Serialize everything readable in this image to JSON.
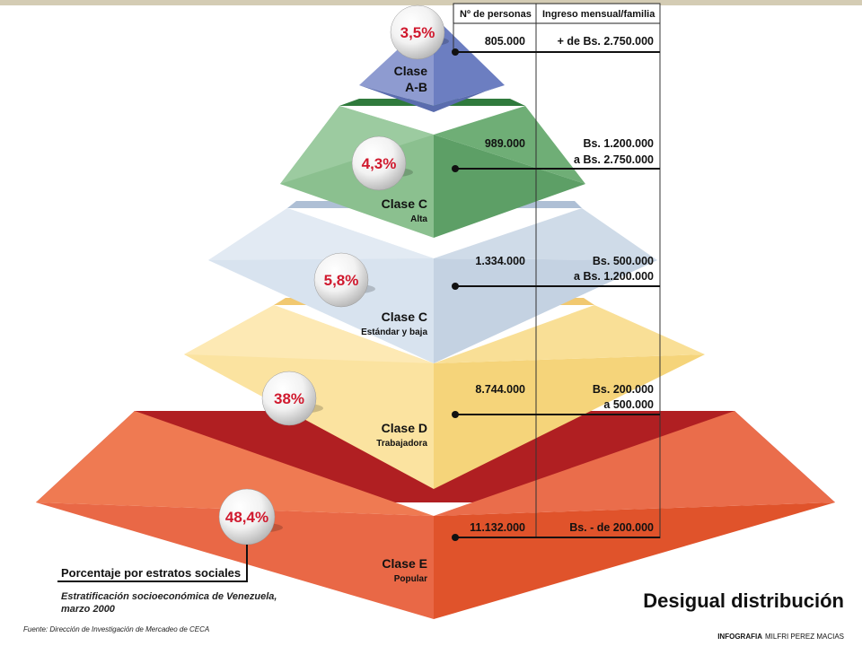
{
  "headline": "Desigual distribución",
  "table_headers": {
    "persons": "Nº de personas",
    "income": "Ingreso mensual/familia"
  },
  "classes": [
    {
      "percent": "3,5%",
      "name": "Clase",
      "name2": "A-B",
      "subtitle": "",
      "persons": "805.000",
      "income1": "+ de Bs. 2.750.000",
      "income2": ""
    },
    {
      "percent": "4,3%",
      "name": "Clase C",
      "name2": "",
      "subtitle": "Alta",
      "persons": "989.000",
      "income1": "Bs. 1.200.000",
      "income2": "a Bs. 2.750.000"
    },
    {
      "percent": "5,8%",
      "name": "Clase C",
      "name2": "",
      "subtitle": "Estándar y baja",
      "persons": "1.334.000",
      "income1": "Bs. 500.000",
      "income2": "a Bs. 1.200.000"
    },
    {
      "percent": "38%",
      "name": "Clase D",
      "name2": "",
      "subtitle": "Trabajadora",
      "persons": "8.744.000",
      "income1": "Bs. 200.000",
      "income2": "a 500.000"
    },
    {
      "percent": "48,4%",
      "name": "Clase E",
      "name2": "",
      "subtitle": "Popular",
      "persons": "11.132.000",
      "income1": "Bs. - de 200.000",
      "income2": ""
    }
  ],
  "legend": {
    "label": "Porcentaje por estratos sociales",
    "note_line1": "Estratificación socioeconómica de Venezuela,",
    "note_line2": "marzo 2000"
  },
  "source": "Fuente: Dirección de Investigación de Mercadeo de CECA",
  "credit_bold": "INFOGRAFIA",
  "credit_name": "MILFRI PEREZ MACIAS",
  "colors": {
    "ab_left": "#8e9bd0",
    "ab_right": "#6f80c2",
    "c_alta_left": "#88bf8c",
    "c_alta_right": "#5aa063",
    "c_baja_left": "#d7e2ee",
    "c_baja_right": "#c0cfe0",
    "d_left": "#fbe6a8",
    "d_right": "#f6d67e",
    "e_left": "#ea6d4b",
    "e_right": "#e4552f",
    "percent_text": "#d0192e"
  }
}
